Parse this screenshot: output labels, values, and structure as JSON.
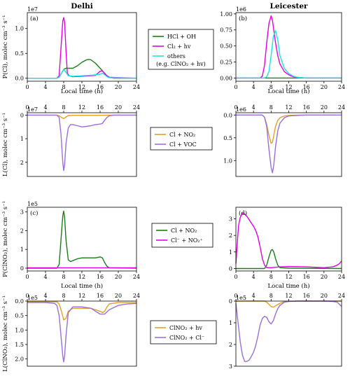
{
  "figure": {
    "column_titles": [
      "Delhi",
      "Leicester"
    ]
  },
  "legends": [
    {
      "row": 0,
      "entries": [
        {
          "label": "HCl + OH",
          "color": "#1a7f1a"
        },
        {
          "label": "Cl₂ + hv",
          "color": "#e600e6"
        },
        {
          "label": "others",
          "color": "#19e6e6"
        },
        {
          "label": "(e.g. ClNO₂ + hv)",
          "color": ""
        }
      ]
    },
    {
      "row": 1,
      "entries": [
        {
          "label": "Cl + NO₂",
          "color": "#e6a020"
        },
        {
          "label": "Cl + VOC",
          "color": "#9b6fe0"
        }
      ]
    },
    {
      "row": 2,
      "entries": [
        {
          "label": "Cl + NO₂",
          "color": "#1a7f1a"
        },
        {
          "label": "Cl⁻ + NO₂⁺",
          "color": "#e600e6"
        }
      ]
    },
    {
      "row": 3,
      "entries": [
        {
          "label": "ClNO₂ + hv",
          "color": "#e6a020"
        },
        {
          "label": "ClNO₂ + Cl⁻",
          "color": "#9b6fe0"
        }
      ]
    }
  ],
  "chart_data": [
    {
      "type": "line",
      "row": 0,
      "col": 0,
      "panel_label": "(a)",
      "title": "Delhi",
      "ylabel": "P(Cl), molec cm⁻³ s⁻¹",
      "exponent": "1e7",
      "xlim": [
        0,
        24
      ],
      "ylim": [
        -0.06,
        1.32
      ],
      "yticks": [
        0.0,
        0.5,
        1.0
      ],
      "ytick_labels": [
        "0.0",
        "0.5",
        "1.0"
      ],
      "inverted": false,
      "xticks_top": false,
      "series": [
        {
          "name": "HCl + OH",
          "color": "#1a7f1a",
          "x": [
            0,
            6.5,
            7.0,
            7.5,
            8.0,
            8.5,
            9.0,
            10,
            11,
            12,
            13,
            13.5,
            14,
            15,
            16,
            16.5,
            17,
            17.5,
            18,
            19,
            24
          ],
          "y": [
            0,
            0,
            0.02,
            0.1,
            0.18,
            0.2,
            0.2,
            0.2,
            0.25,
            0.32,
            0.37,
            0.38,
            0.37,
            0.3,
            0.2,
            0.15,
            0.09,
            0.04,
            0.02,
            0.0,
            0
          ]
        },
        {
          "name": "Cl₂ + hv",
          "color": "#e600e6",
          "x": [
            0,
            6.5,
            7.0,
            7.4,
            7.8,
            8.0,
            8.2,
            8.5,
            8.8,
            9.2,
            10,
            12,
            14,
            15,
            15.5,
            16,
            16.5,
            17,
            17.5,
            18,
            24
          ],
          "y": [
            0,
            0,
            0.05,
            0.6,
            1.15,
            1.22,
            1.12,
            0.55,
            0.1,
            0.05,
            0.03,
            0.04,
            0.05,
            0.06,
            0.1,
            0.14,
            0.15,
            0.1,
            0.05,
            0.02,
            0
          ]
        },
        {
          "name": "others",
          "color": "#19e6e6",
          "x": [
            0,
            6.5,
            7.0,
            7.5,
            8.0,
            8.5,
            9.0,
            10,
            12,
            14,
            16,
            16.5,
            17,
            17.5,
            18,
            24
          ],
          "y": [
            0,
            0,
            0.02,
            0.1,
            0.18,
            0.12,
            0.05,
            0.04,
            0.05,
            0.06,
            0.08,
            0.1,
            0.07,
            0.03,
            0.01,
            0
          ]
        }
      ]
    },
    {
      "type": "line",
      "row": 0,
      "col": 1,
      "panel_label": "(b)",
      "title": "Leicester",
      "ylabel": "",
      "exponent": "1e6",
      "xlim": [
        0,
        24
      ],
      "ylim": [
        -0.05,
        1.02
      ],
      "yticks": [
        0.0,
        0.25,
        0.5,
        0.75,
        1.0
      ],
      "ytick_labels": [
        "0.00",
        "0.25",
        "0.50",
        "0.75",
        "1.00"
      ],
      "inverted": false,
      "xticks_top": false,
      "series": [
        {
          "name": "HCl + OH",
          "color": "#1a7f1a",
          "x": [
            0,
            24
          ],
          "y": [
            0,
            0
          ]
        },
        {
          "name": "Cl₂ + hv",
          "color": "#e600e6",
          "x": [
            0,
            5.5,
            6.0,
            6.5,
            7.0,
            7.5,
            8.0,
            8.3,
            8.6,
            9.0,
            9.5,
            10,
            11,
            12,
            13,
            14,
            16,
            24
          ],
          "y": [
            0,
            0,
            0.03,
            0.2,
            0.55,
            0.85,
            0.97,
            0.9,
            0.75,
            0.55,
            0.35,
            0.22,
            0.1,
            0.05,
            0.02,
            0.01,
            0,
            0
          ]
        },
        {
          "name": "others",
          "color": "#19e6e6",
          "x": [
            0,
            6.5,
            7.0,
            7.5,
            8.0,
            8.5,
            9.0,
            9.5,
            10,
            11,
            12,
            13,
            14,
            16,
            24
          ],
          "y": [
            0,
            0,
            0.02,
            0.1,
            0.35,
            0.65,
            0.74,
            0.6,
            0.35,
            0.15,
            0.07,
            0.03,
            0.01,
            0,
            0
          ]
        }
      ]
    },
    {
      "type": "line",
      "row": 1,
      "col": 0,
      "panel_label": "",
      "title": "",
      "ylabel": "L(Cl), molec cm⁻³ s⁻¹",
      "exponent": "1e7",
      "xlim": [
        0,
        24
      ],
      "ylim": [
        -0.1,
        2.6
      ],
      "yticks": [
        0,
        1,
        2
      ],
      "ytick_labels": [
        "0",
        "1",
        "2"
      ],
      "inverted": true,
      "xticks_top": true,
      "xlabel_top": "Local time (h)",
      "series": [
        {
          "name": "Cl + NO₂",
          "color": "#e6a020",
          "x": [
            0,
            6.5,
            7.0,
            7.5,
            8.0,
            8.5,
            9.0,
            10,
            12,
            16,
            18,
            24
          ],
          "y": [
            0,
            0,
            0.03,
            0.1,
            0.15,
            0.08,
            0.02,
            0.01,
            0.01,
            0.01,
            0,
            0
          ]
        },
        {
          "name": "Cl + VOC",
          "color": "#9b6fe0",
          "x": [
            0,
            6.5,
            7.0,
            7.4,
            7.8,
            8.0,
            8.2,
            8.5,
            9.0,
            9.5,
            10,
            11,
            12,
            13,
            14,
            15,
            16,
            16.5,
            17,
            17.5,
            18,
            19,
            24
          ],
          "y": [
            0,
            0,
            0.1,
            0.8,
            2.0,
            2.35,
            2.1,
            1.2,
            0.55,
            0.4,
            0.4,
            0.45,
            0.5,
            0.48,
            0.45,
            0.4,
            0.38,
            0.35,
            0.22,
            0.1,
            0.03,
            0,
            0
          ]
        }
      ]
    },
    {
      "type": "line",
      "row": 1,
      "col": 1,
      "panel_label": "",
      "title": "",
      "ylabel": "",
      "exponent": "1e6",
      "xlim": [
        0,
        24
      ],
      "ylim": [
        -0.05,
        1.35
      ],
      "yticks": [
        0.0,
        0.5,
        1.0
      ],
      "ytick_labels": [
        "0.0",
        "0.5",
        "1.0"
      ],
      "inverted": true,
      "xticks_top": true,
      "xlabel_top": "Local time (h)",
      "series": [
        {
          "name": "Cl + NO₂",
          "color": "#e6a020",
          "x": [
            0,
            6.0,
            6.5,
            7.0,
            7.5,
            8.0,
            8.3,
            8.6,
            9.0,
            9.5,
            10,
            11,
            12,
            14,
            16,
            24
          ],
          "y": [
            0,
            0,
            0.05,
            0.2,
            0.45,
            0.62,
            0.6,
            0.45,
            0.25,
            0.12,
            0.06,
            0.02,
            0.01,
            0,
            0,
            0
          ]
        },
        {
          "name": "Cl + VOC",
          "color": "#9b6fe0",
          "x": [
            0,
            6.0,
            6.5,
            7.0,
            7.5,
            8.0,
            8.3,
            8.6,
            9.0,
            9.5,
            10,
            11,
            12,
            14,
            16,
            24
          ],
          "y": [
            0,
            0,
            0.05,
            0.25,
            0.75,
            1.15,
            1.27,
            1.1,
            0.7,
            0.35,
            0.18,
            0.06,
            0.02,
            0.01,
            0,
            0
          ]
        }
      ]
    },
    {
      "type": "line",
      "row": 2,
      "col": 0,
      "panel_label": "(c)",
      "title": "",
      "ylabel": "P(ClNO₂), molec cm⁻³ s⁻¹",
      "exponent": "1e5",
      "xlim": [
        0,
        24
      ],
      "ylim": [
        -0.15,
        3.25
      ],
      "yticks": [
        0,
        1,
        2,
        3
      ],
      "ytick_labels": [
        "0",
        "1",
        "2",
        "3"
      ],
      "inverted": false,
      "xticks_top": false,
      "series": [
        {
          "name": "Cl + NO₂",
          "color": "#1a7f1a",
          "x": [
            0,
            6.5,
            7.0,
            7.4,
            7.8,
            8.0,
            8.2,
            8.5,
            9.0,
            9.5,
            10,
            11,
            12,
            13,
            14,
            15,
            16,
            16.5,
            17,
            17.5,
            18,
            24
          ],
          "y": [
            0,
            0,
            0.2,
            1.5,
            2.8,
            3.05,
            2.7,
            1.5,
            0.45,
            0.35,
            0.4,
            0.5,
            0.55,
            0.55,
            0.55,
            0.55,
            0.6,
            0.55,
            0.3,
            0.1,
            0.02,
            0
          ]
        },
        {
          "name": "Cl⁻ + NO₂⁺",
          "color": "#e600e6",
          "x": [
            0,
            24
          ],
          "y": [
            0.02,
            0.02
          ]
        }
      ]
    },
    {
      "type": "line",
      "row": 2,
      "col": 1,
      "panel_label": "(d)",
      "title": "",
      "ylabel": "",
      "exponent": "",
      "xlim": [
        0,
        24
      ],
      "ylim": [
        -0.15,
        3.7
      ],
      "yticks": [
        0,
        1,
        2,
        3
      ],
      "ytick_labels": [
        "0",
        "1",
        "2",
        "3"
      ],
      "inverted": false,
      "xticks_top": false,
      "series": [
        {
          "name": "Cl + NO₂",
          "color": "#1a7f1a",
          "x": [
            0,
            6.5,
            7.0,
            7.5,
            8.0,
            8.3,
            8.6,
            9.0,
            9.5,
            10,
            12,
            16,
            24
          ],
          "y": [
            0,
            0,
            0.2,
            0.7,
            1.1,
            1.15,
            1.0,
            0.6,
            0.2,
            0.05,
            0.02,
            0.01,
            0
          ]
        },
        {
          "name": "Cl⁻ + NO₂⁺",
          "color": "#e600e6",
          "x": [
            0,
            0.3,
            0.6,
            1.0,
            1.5,
            2.0,
            2.5,
            3.0,
            3.5,
            4.0,
            4.5,
            5.0,
            5.5,
            6.0,
            6.5,
            7.0,
            8.0,
            10,
            12,
            16,
            20,
            22,
            23,
            23.5,
            24
          ],
          "y": [
            0.3,
            1.5,
            2.6,
            3.1,
            3.35,
            3.3,
            3.15,
            2.95,
            2.75,
            2.55,
            2.3,
            1.9,
            1.3,
            0.6,
            0.2,
            0.05,
            0.05,
            0.1,
            0.12,
            0.1,
            0.05,
            0.1,
            0.2,
            0.3,
            0.45
          ]
        }
      ]
    },
    {
      "type": "line",
      "row": 3,
      "col": 0,
      "panel_label": "",
      "title": "",
      "ylabel": "L(ClNO₂), molec cm⁻³ s⁻¹",
      "exponent": "1e5",
      "xlim": [
        0,
        24
      ],
      "ylim": [
        0.0,
        2.25
      ],
      "yticks": [
        0.0,
        0.5,
        1.0,
        1.5,
        2.0
      ],
      "ytick_labels": [
        "0.0",
        "0.5",
        "1.0",
        "1.5",
        "2.0"
      ],
      "inverted": true,
      "xticks_top": true,
      "xlabel_top": "Local time (h)",
      "series": [
        {
          "name": "ClNO₂ + hv",
          "color": "#e6a020",
          "x": [
            0,
            6.5,
            7.0,
            7.5,
            8.0,
            8.5,
            9.0,
            10,
            12,
            14,
            16,
            16.5,
            17,
            17.5,
            18,
            20,
            24
          ],
          "y": [
            0.02,
            0.03,
            0.1,
            0.35,
            0.65,
            0.6,
            0.35,
            0.25,
            0.25,
            0.25,
            0.35,
            0.4,
            0.35,
            0.2,
            0.1,
            0.05,
            0.05
          ]
        },
        {
          "name": "ClNO₂ + Cl⁻",
          "color": "#9b6fe0",
          "x": [
            0,
            4,
            6.0,
            6.5,
            7.0,
            7.4,
            7.8,
            8.0,
            8.2,
            8.5,
            9.0,
            10,
            12,
            14,
            15,
            16,
            17,
            18,
            20,
            22,
            24
          ],
          "y": [
            0.05,
            0.05,
            0.08,
            0.15,
            0.5,
            1.2,
            1.9,
            2.1,
            1.9,
            1.2,
            0.4,
            0.2,
            0.2,
            0.25,
            0.35,
            0.45,
            0.45,
            0.3,
            0.15,
            0.1,
            0.08
          ]
        }
      ]
    },
    {
      "type": "line",
      "row": 3,
      "col": 1,
      "panel_label": "",
      "title": "",
      "ylabel": "",
      "exponent": "1e5",
      "xlim": [
        0,
        24
      ],
      "ylim": [
        0,
        3.0
      ],
      "yticks": [
        0,
        1,
        2,
        3
      ],
      "ytick_labels": [
        "0",
        "1",
        "2",
        "3"
      ],
      "inverted": true,
      "xticks_top": true,
      "xlabel_top": "Local time (h)",
      "series": [
        {
          "name": "ClNO₂ + hv",
          "color": "#e6a020",
          "x": [
            0,
            6.5,
            7.0,
            7.5,
            8.0,
            8.5,
            9.0,
            10,
            11,
            12,
            14,
            16,
            20,
            24
          ],
          "y": [
            0,
            0,
            0.05,
            0.15,
            0.25,
            0.28,
            0.22,
            0.1,
            0.03,
            0.01,
            0,
            0,
            0,
            0
          ]
        },
        {
          "name": "ClNO₂ + Cl⁻",
          "color": "#9b6fe0",
          "x": [
            0,
            0.5,
            1.0,
            1.5,
            2.0,
            2.5,
            3.0,
            3.5,
            4.0,
            4.5,
            5.0,
            5.5,
            6.0,
            6.5,
            7.0,
            7.5,
            8.0,
            8.5,
            9.0,
            9.5,
            10,
            11,
            12,
            14,
            16,
            18,
            20,
            22,
            23,
            24
          ],
          "y": [
            0.1,
            1.0,
            1.9,
            2.5,
            2.78,
            2.78,
            2.72,
            2.55,
            2.35,
            2.05,
            1.6,
            1.1,
            0.8,
            0.7,
            0.75,
            0.95,
            1.05,
            0.9,
            0.6,
            0.35,
            0.2,
            0.05,
            0.02,
            0,
            0,
            0,
            0,
            0.02,
            0.05,
            0.25
          ]
        }
      ]
    }
  ]
}
